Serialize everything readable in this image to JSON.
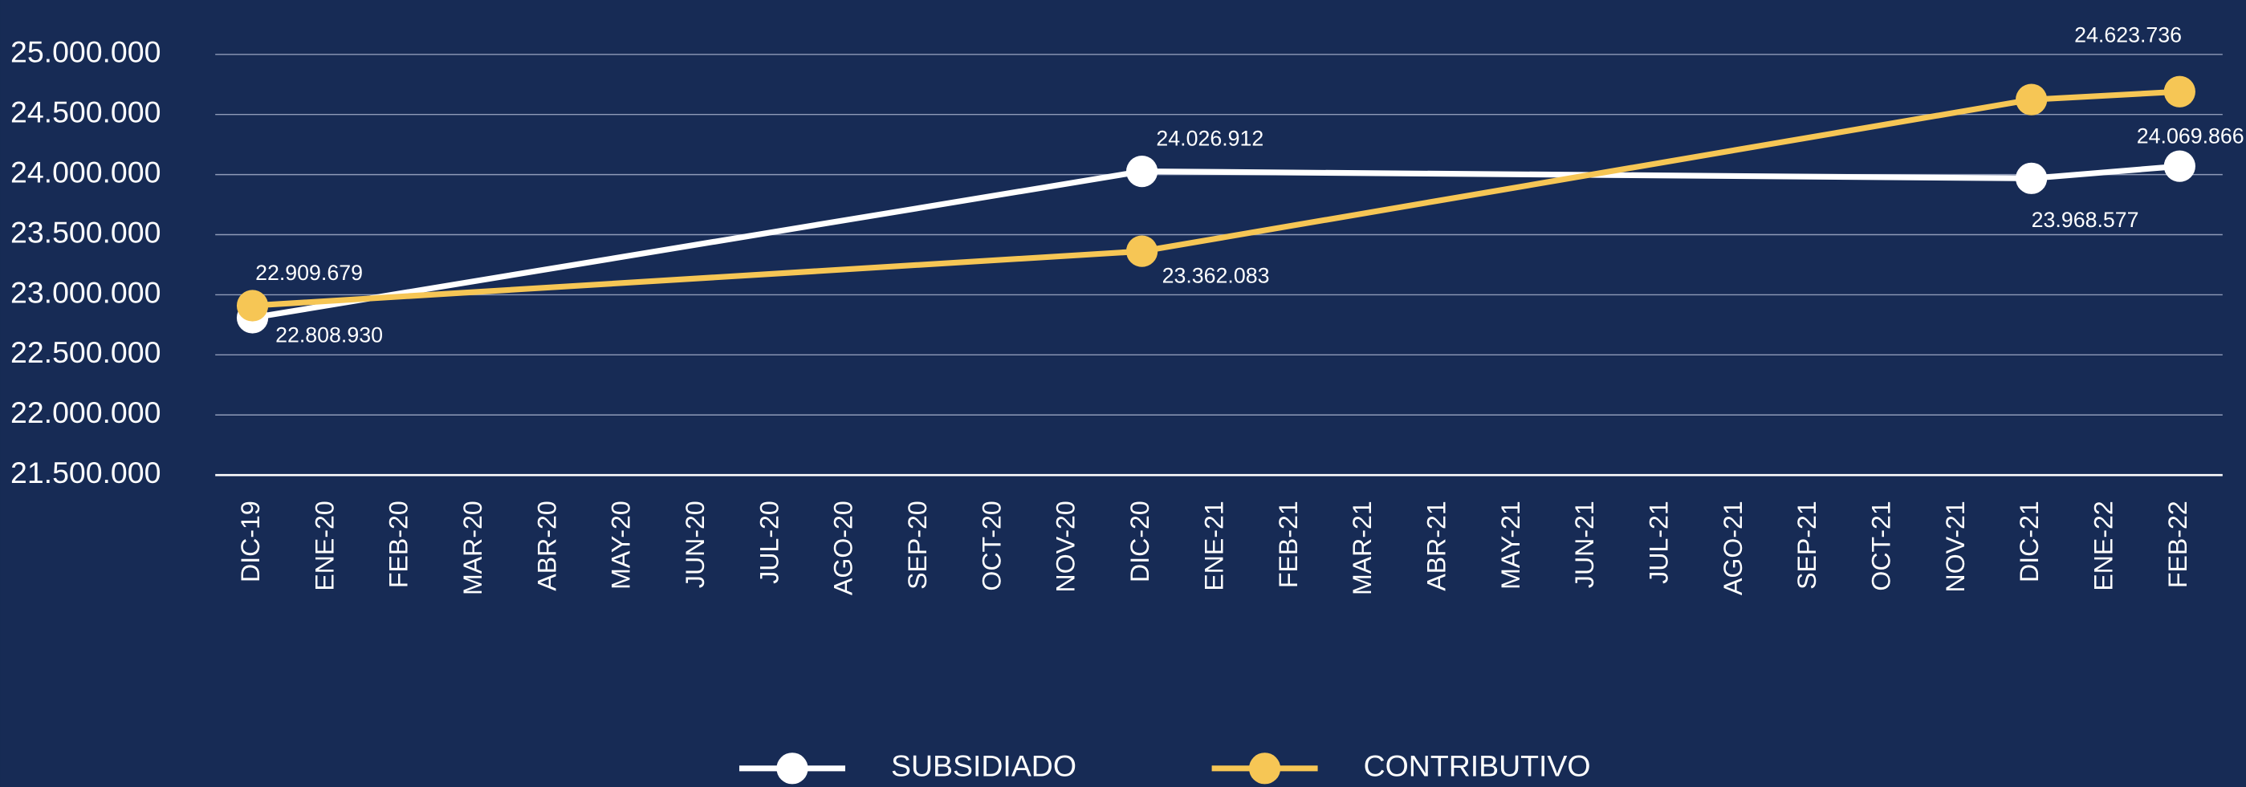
{
  "chart_data": {
    "type": "line",
    "categories": [
      "DIC-19",
      "ENE-20",
      "FEB-20",
      "MAR-20",
      "ABR-20",
      "MAY-20",
      "JUN-20",
      "JUL-20",
      "AGO-20",
      "SEP-20",
      "OCT-20",
      "NOV-20",
      "DIC-20",
      "ENE-21",
      "FEB-21",
      "MAR-21",
      "ABR-21",
      "MAY-21",
      "JUN-21",
      "JUL-21",
      "AGO-21",
      "SEP-21",
      "OCT-21",
      "NOV-21",
      "DIC-21",
      "ENE-22",
      "FEB-22"
    ],
    "series": [
      {
        "name": "SUBSIDIADO",
        "color": "#ffffff",
        "x": [
          "DIC-19",
          "DIC-20",
          "DIC-21",
          "FEB-22"
        ],
        "values": [
          22808930,
          24026912,
          23968577,
          24069866
        ],
        "value_labels": [
          "22.808.930",
          "24.026.912",
          "23.968.577",
          "24.069.866"
        ]
      },
      {
        "name": "CONTRIBUTIVO",
        "color": "#f6c655",
        "x": [
          "DIC-19",
          "DIC-20",
          "DIC-21",
          "FEB-22"
        ],
        "values": [
          22909679,
          23362083,
          24623736,
          24690000
        ],
        "value_labels": [
          "22.909.679",
          "23.362.083",
          "24.623.736",
          null
        ]
      }
    ],
    "ylim": [
      21500000,
      25000000
    ],
    "yticks": [
      {
        "value": 21500000,
        "label": "21.500.000"
      },
      {
        "value": 22000000,
        "label": "22.000.000"
      },
      {
        "value": 22500000,
        "label": "22.500.000"
      },
      {
        "value": 23000000,
        "label": "23.000.000"
      },
      {
        "value": 23500000,
        "label": "23.500.000"
      },
      {
        "value": 24000000,
        "label": "24.000.000"
      },
      {
        "value": 24500000,
        "label": "24.500.000"
      },
      {
        "value": 25000000,
        "label": "25.000.000"
      }
    ],
    "grid": true,
    "legend": "bottom"
  }
}
